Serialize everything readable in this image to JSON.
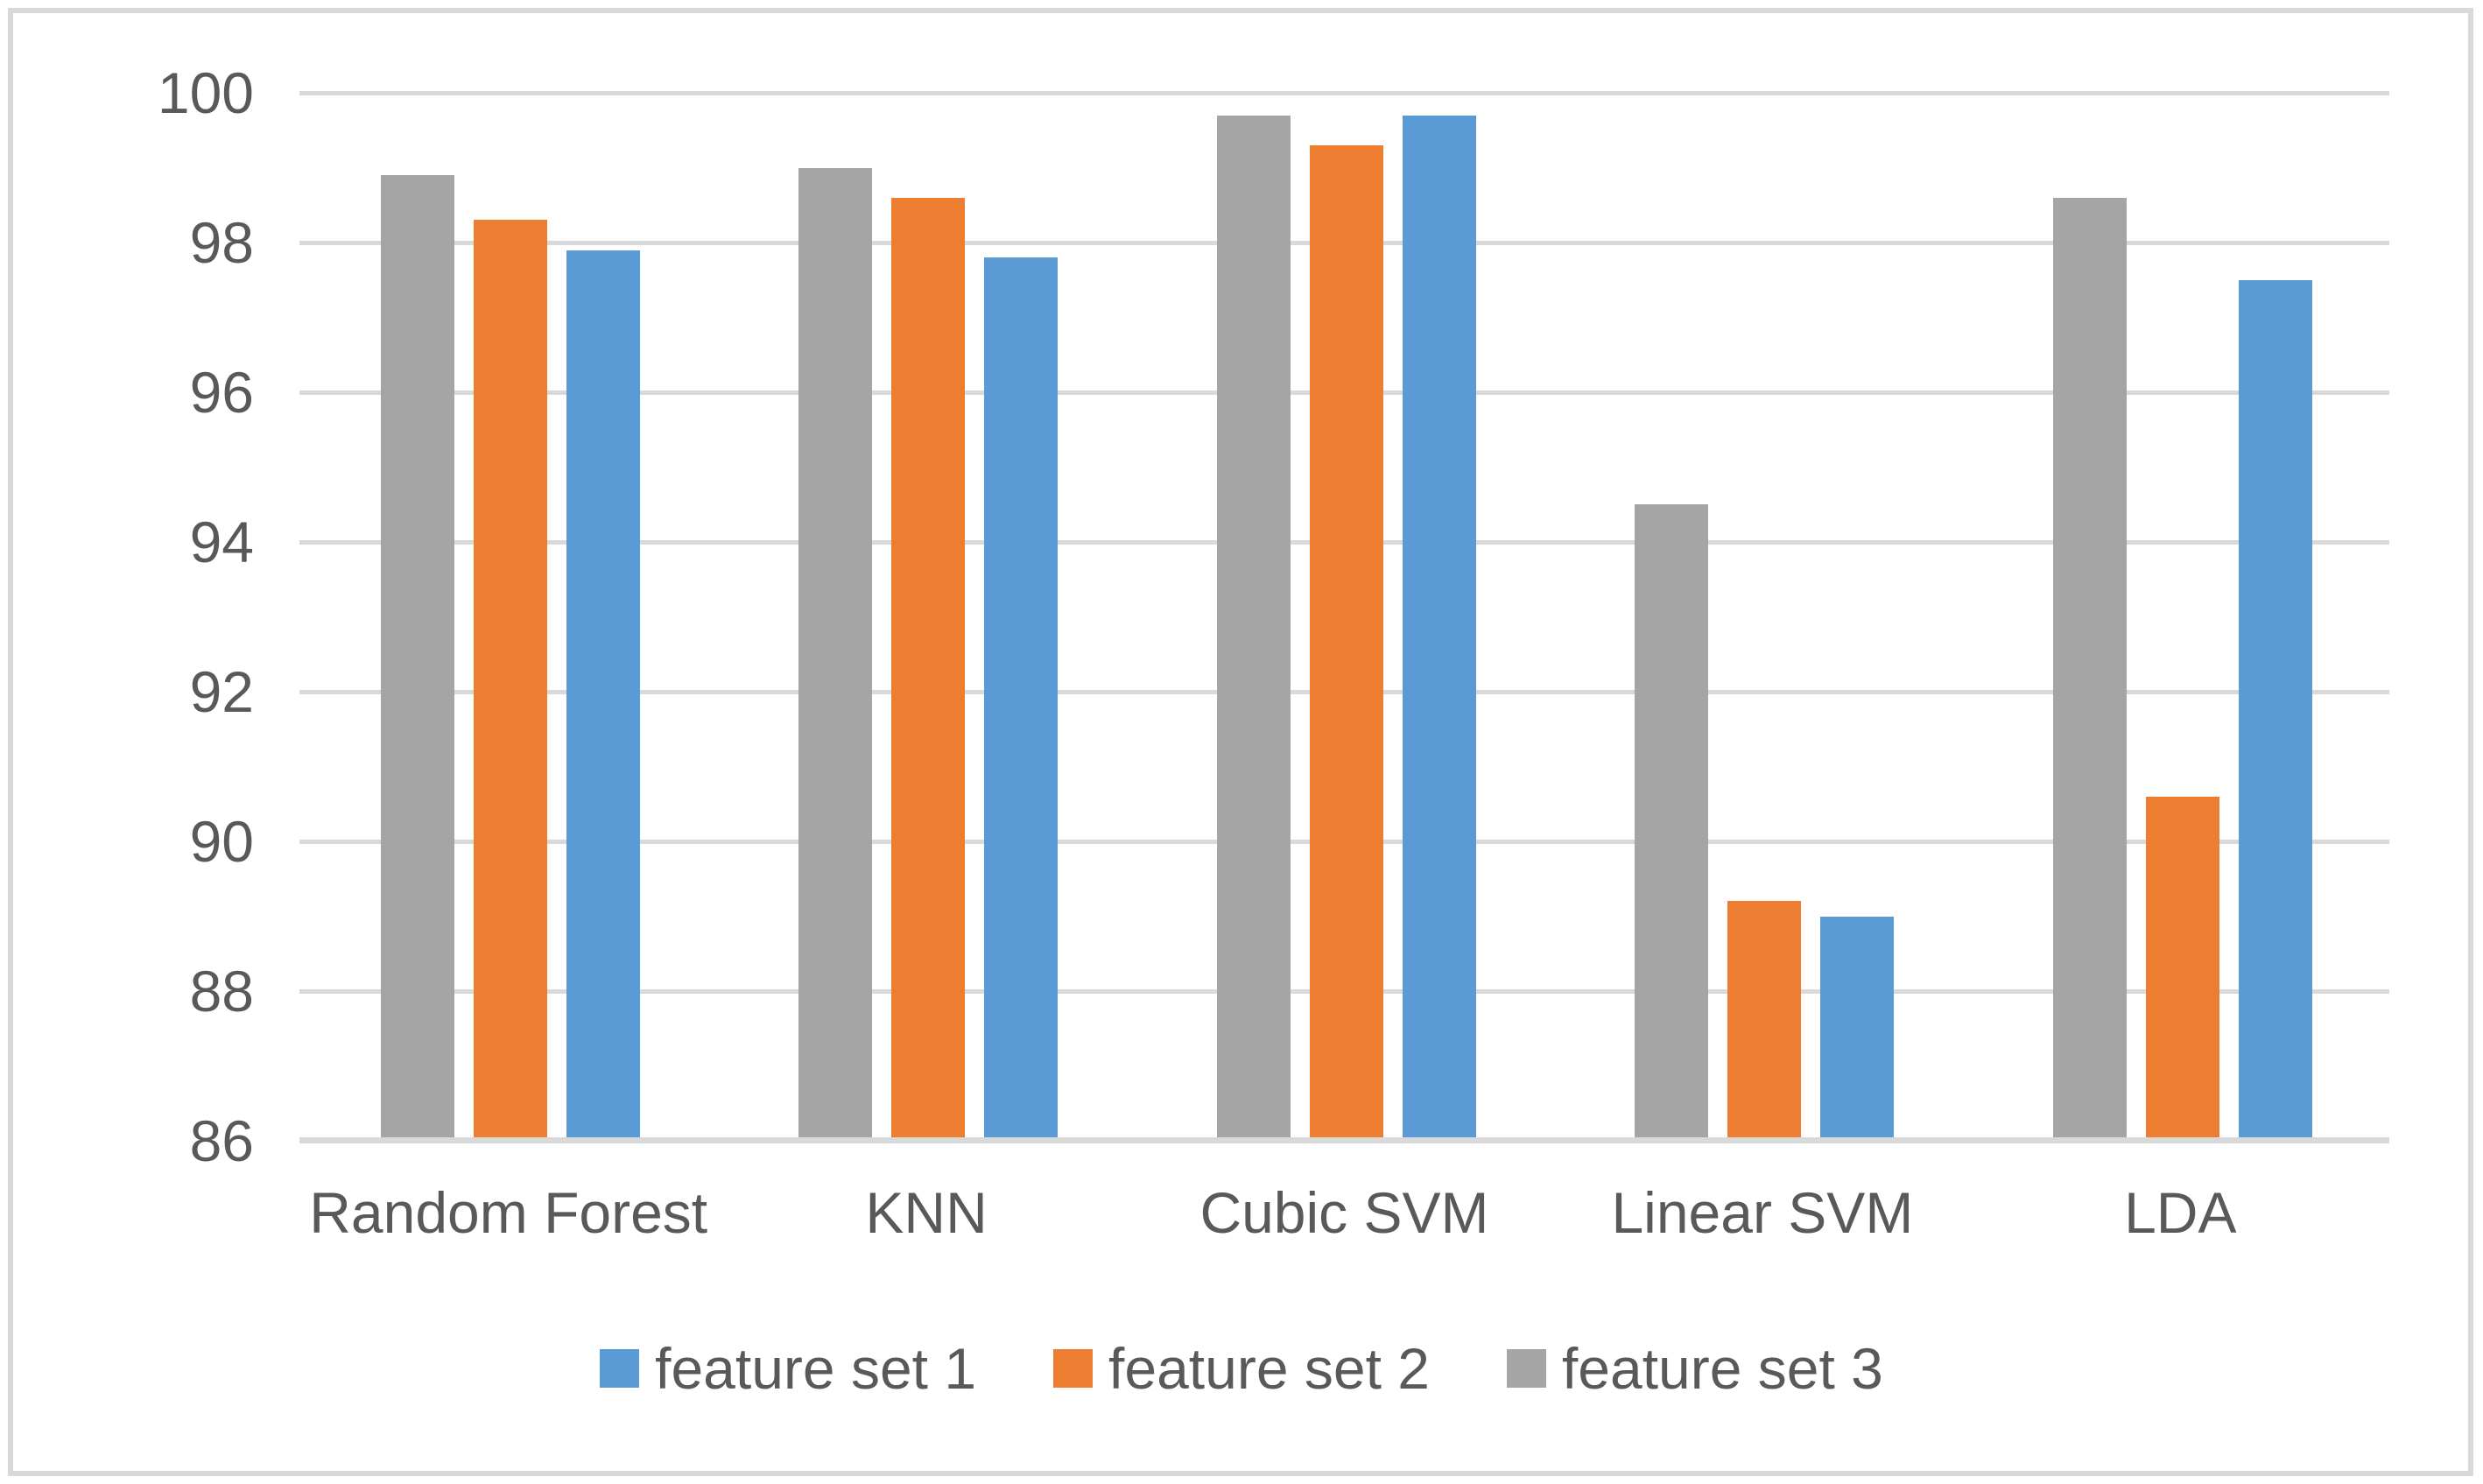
{
  "chart_data": {
    "type": "bar",
    "title": "",
    "categories": [
      "Random Forest",
      "KNN",
      "Cubic SVM",
      "Linear SVM",
      "LDA"
    ],
    "series": [
      {
        "name": "feature set 1",
        "color": "#5B9BD5",
        "values": [
          97.9,
          97.8,
          99.7,
          89.0,
          97.5
        ]
      },
      {
        "name": "feature set 2",
        "color": "#ED7D31",
        "values": [
          98.3,
          98.6,
          99.3,
          89.2,
          90.6
        ]
      },
      {
        "name": "feature set 3",
        "color": "#A5A5A5",
        "values": [
          98.9,
          99.0,
          99.7,
          94.5,
          98.6
        ]
      }
    ],
    "bar_draw_order": [
      "feature set 3",
      "feature set 2",
      "feature set 1"
    ],
    "xlabel": "",
    "ylabel": "",
    "ylim": [
      86,
      100
    ],
    "yticks": [
      100,
      98,
      96,
      94,
      92,
      90,
      88,
      86
    ],
    "grid": true,
    "legend_position": "bottom",
    "colors": {
      "gridline": "#D9D9D9",
      "axis_line": "#D9D9D9",
      "axis_text": "#595959",
      "frame_border": "#D9D9D9",
      "background": "#FFFFFF"
    }
  }
}
